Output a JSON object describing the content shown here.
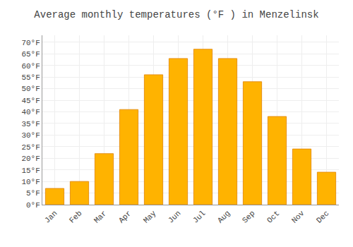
{
  "chart_data": {
    "type": "bar",
    "title": "Average monthly temperatures (°F ) in Menzelinsk",
    "categories": [
      "Jan",
      "Feb",
      "Mar",
      "Apr",
      "May",
      "Jun",
      "Jul",
      "Aug",
      "Sep",
      "Oct",
      "Nov",
      "Dec"
    ],
    "values": [
      7,
      10,
      22,
      41,
      56,
      63,
      67,
      63,
      53,
      38,
      24,
      14
    ],
    "color": "#FFB300",
    "ylim": [
      0,
      73
    ],
    "yticks": [
      {
        "value": 0,
        "label": "0°F"
      },
      {
        "value": 5,
        "label": "5°F"
      },
      {
        "value": 10,
        "label": "10°F"
      },
      {
        "value": 15,
        "label": "15°F"
      },
      {
        "value": 20,
        "label": "20°F"
      },
      {
        "value": 25,
        "label": "25°F"
      },
      {
        "value": 30,
        "label": "30°F"
      },
      {
        "value": 35,
        "label": "35°F"
      },
      {
        "value": 40,
        "label": "40°F"
      },
      {
        "value": 45,
        "label": "45°F"
      },
      {
        "value": 50,
        "label": "50°F"
      },
      {
        "value": 55,
        "label": "55°F"
      },
      {
        "value": 60,
        "label": "60°F"
      },
      {
        "value": 65,
        "label": "65°F"
      },
      {
        "value": 70,
        "label": "70°F"
      }
    ],
    "grid": true
  }
}
